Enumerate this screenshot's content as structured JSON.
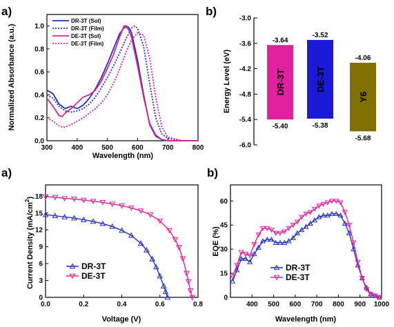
{
  "panels": {
    "top_left": "a)",
    "top_right": "b)",
    "bottom_left": "a)",
    "bottom_right": "b)"
  },
  "chart_data": [
    {
      "type": "line",
      "xlabel": "Wavelength (nm)",
      "ylabel": "Normalized Absorbance (a.u.)",
      "xlim": [
        300,
        800
      ],
      "ylim": [
        0,
        1.1
      ],
      "xticks": [
        "300",
        "400",
        "500",
        "600",
        "700",
        "800"
      ],
      "yticks": [
        "0.0",
        "0.2",
        "0.4",
        "0.6",
        "0.8",
        "1.0"
      ],
      "legend_position": "top-left",
      "series": [
        {
          "name": "DR-3T (Sol)",
          "color": "#1f2fbf",
          "style": "solid",
          "x": [
            300,
            320,
            340,
            360,
            380,
            400,
            420,
            440,
            460,
            480,
            500,
            520,
            540,
            560,
            570,
            580,
            600,
            620,
            640,
            660,
            680,
            700,
            750,
            800
          ],
          "y": [
            0.44,
            0.41,
            0.32,
            0.28,
            0.3,
            0.28,
            0.31,
            0.37,
            0.45,
            0.55,
            0.67,
            0.8,
            0.93,
            1.0,
            0.99,
            0.94,
            0.7,
            0.4,
            0.14,
            0.04,
            0.01,
            0.0,
            0.0,
            0.0
          ]
        },
        {
          "name": "DR-3T (Film)",
          "color": "#1f2fbf",
          "style": "dotted",
          "x": [
            300,
            320,
            340,
            360,
            380,
            400,
            420,
            440,
            460,
            480,
            500,
            520,
            540,
            560,
            580,
            590,
            600,
            620,
            640,
            660,
            680,
            700,
            750,
            800
          ],
          "y": [
            0.4,
            0.37,
            0.3,
            0.26,
            0.25,
            0.26,
            0.28,
            0.32,
            0.38,
            0.46,
            0.55,
            0.65,
            0.76,
            0.88,
            0.98,
            1.0,
            0.98,
            0.82,
            0.5,
            0.2,
            0.06,
            0.02,
            0.0,
            0.0
          ]
        },
        {
          "name": "DE-3T (Sol)",
          "color": "#e0209c",
          "style": "solid",
          "x": [
            300,
            320,
            340,
            350,
            360,
            380,
            400,
            420,
            440,
            460,
            480,
            500,
            520,
            540,
            555,
            570,
            580,
            600,
            620,
            640,
            660,
            680,
            700,
            750,
            800
          ],
          "y": [
            0.37,
            0.3,
            0.22,
            0.21,
            0.24,
            0.28,
            0.33,
            0.38,
            0.4,
            0.44,
            0.52,
            0.63,
            0.75,
            0.9,
            1.0,
            0.97,
            0.9,
            0.65,
            0.38,
            0.15,
            0.05,
            0.01,
            0.0,
            0.0,
            0.0
          ]
        },
        {
          "name": "DE-3T (Film)",
          "color": "#e0209c",
          "style": "dotted",
          "x": [
            300,
            320,
            340,
            350,
            360,
            380,
            400,
            420,
            440,
            460,
            480,
            500,
            520,
            540,
            560,
            580,
            600,
            610,
            620,
            640,
            660,
            680,
            700,
            750,
            800
          ],
          "y": [
            0.2,
            0.17,
            0.13,
            0.12,
            0.12,
            0.14,
            0.17,
            0.2,
            0.24,
            0.28,
            0.33,
            0.4,
            0.5,
            0.62,
            0.76,
            0.88,
            0.94,
            0.93,
            0.92,
            0.72,
            0.38,
            0.12,
            0.03,
            0.0,
            0.0
          ]
        }
      ]
    },
    {
      "type": "bar",
      "ylabel": "Energy Level (eV)",
      "ylim": [
        -6.0,
        -3.0
      ],
      "yticks": [
        "-3.0",
        "-3.6",
        "-4.2",
        "-4.8",
        "-5.4",
        "-6.0"
      ],
      "categories": [
        "DR-3T",
        "DE-3T",
        "Y6"
      ],
      "lumo": [
        -3.64,
        -3.52,
        -4.06
      ],
      "homo": [
        -5.4,
        -5.38,
        -5.68
      ],
      "lumo_labels": [
        "-3.64",
        "-3.52",
        "-4.06"
      ],
      "homo_labels": [
        "-5.40",
        "-5.38",
        "-5.68"
      ],
      "colors": [
        "#e0209c",
        "#1a1ad6",
        "#807000"
      ]
    },
    {
      "type": "line",
      "xlabel": "Voltage (V)",
      "ylabel_main": "Current Density (mA/cm",
      "ylabel_sup": "2",
      "ylabel_end": ")",
      "xlim": [
        0.0,
        0.8
      ],
      "ylim": [
        0,
        20
      ],
      "xticks": [
        "0.0",
        "0.2",
        "0.4",
        "0.6",
        "0.8"
      ],
      "yticks": [
        "0",
        "3",
        "6",
        "9",
        "12",
        "15",
        "18"
      ],
      "legend_position": "bottom-left",
      "series": [
        {
          "name": "DR-3T",
          "color": "#1f2fbf",
          "marker": "triangle-up",
          "x": [
            0.0,
            0.05,
            0.1,
            0.15,
            0.2,
            0.25,
            0.3,
            0.35,
            0.4,
            0.45,
            0.5,
            0.53,
            0.56,
            0.58,
            0.6,
            0.62,
            0.63,
            0.64
          ],
          "y": [
            14.7,
            14.5,
            14.3,
            14.1,
            13.8,
            13.5,
            13.1,
            12.6,
            11.9,
            11.0,
            9.6,
            8.4,
            6.8,
            5.4,
            3.8,
            2.0,
            1.0,
            0.0
          ]
        },
        {
          "name": "DE-3T",
          "color": "#e0209c",
          "marker": "triangle-down",
          "x": [
            0.0,
            0.05,
            0.1,
            0.15,
            0.2,
            0.25,
            0.3,
            0.35,
            0.4,
            0.45,
            0.5,
            0.55,
            0.6,
            0.65,
            0.68,
            0.7,
            0.72,
            0.74,
            0.75,
            0.76,
            0.77
          ],
          "y": [
            17.9,
            17.8,
            17.6,
            17.5,
            17.3,
            17.1,
            16.9,
            16.6,
            16.3,
            15.9,
            15.4,
            14.7,
            13.6,
            11.9,
            10.3,
            8.9,
            6.9,
            4.3,
            2.8,
            1.2,
            0.0
          ]
        }
      ]
    },
    {
      "type": "line",
      "xlabel": "Wavelength (nm)",
      "ylabel": "EQE (%)",
      "xlim": [
        300,
        1000
      ],
      "ylim": [
        0,
        70
      ],
      "xticks": [
        "400",
        "500",
        "600",
        "700",
        "800",
        "900",
        "1000"
      ],
      "yticks": [
        "0",
        "15",
        "30",
        "45",
        "60"
      ],
      "legend_position": "bottom-center",
      "series": [
        {
          "name": "DR-3T",
          "color": "#1f2fbf",
          "marker": "triangle-up",
          "x": [
            310,
            330,
            350,
            370,
            390,
            410,
            430,
            450,
            470,
            490,
            510,
            530,
            550,
            570,
            590,
            610,
            630,
            650,
            670,
            690,
            710,
            730,
            750,
            770,
            790,
            810,
            830,
            850,
            870,
            890,
            910,
            930,
            950,
            970,
            990
          ],
          "y": [
            10,
            17,
            24,
            24,
            22,
            27,
            31,
            35,
            36,
            36,
            34,
            34,
            34,
            35,
            37,
            40,
            42,
            44,
            46,
            48,
            50,
            51,
            51,
            52,
            52,
            51,
            46,
            40,
            30,
            20,
            12,
            6,
            2,
            1,
            0
          ]
        },
        {
          "name": "DE-3T",
          "color": "#e0209c",
          "marker": "triangle-down",
          "x": [
            310,
            330,
            350,
            370,
            390,
            410,
            430,
            450,
            470,
            490,
            510,
            530,
            550,
            570,
            590,
            610,
            630,
            650,
            670,
            690,
            710,
            730,
            750,
            770,
            790,
            810,
            830,
            850,
            870,
            890,
            910,
            930,
            950,
            970,
            990
          ],
          "y": [
            13,
            20,
            28,
            27,
            26,
            33,
            39,
            43,
            43,
            42,
            40,
            40,
            41,
            43,
            45,
            47,
            50,
            52,
            53,
            55,
            57,
            58,
            59,
            60,
            60,
            59,
            53,
            45,
            34,
            22,
            12,
            5,
            2,
            1,
            0
          ]
        }
      ]
    }
  ]
}
